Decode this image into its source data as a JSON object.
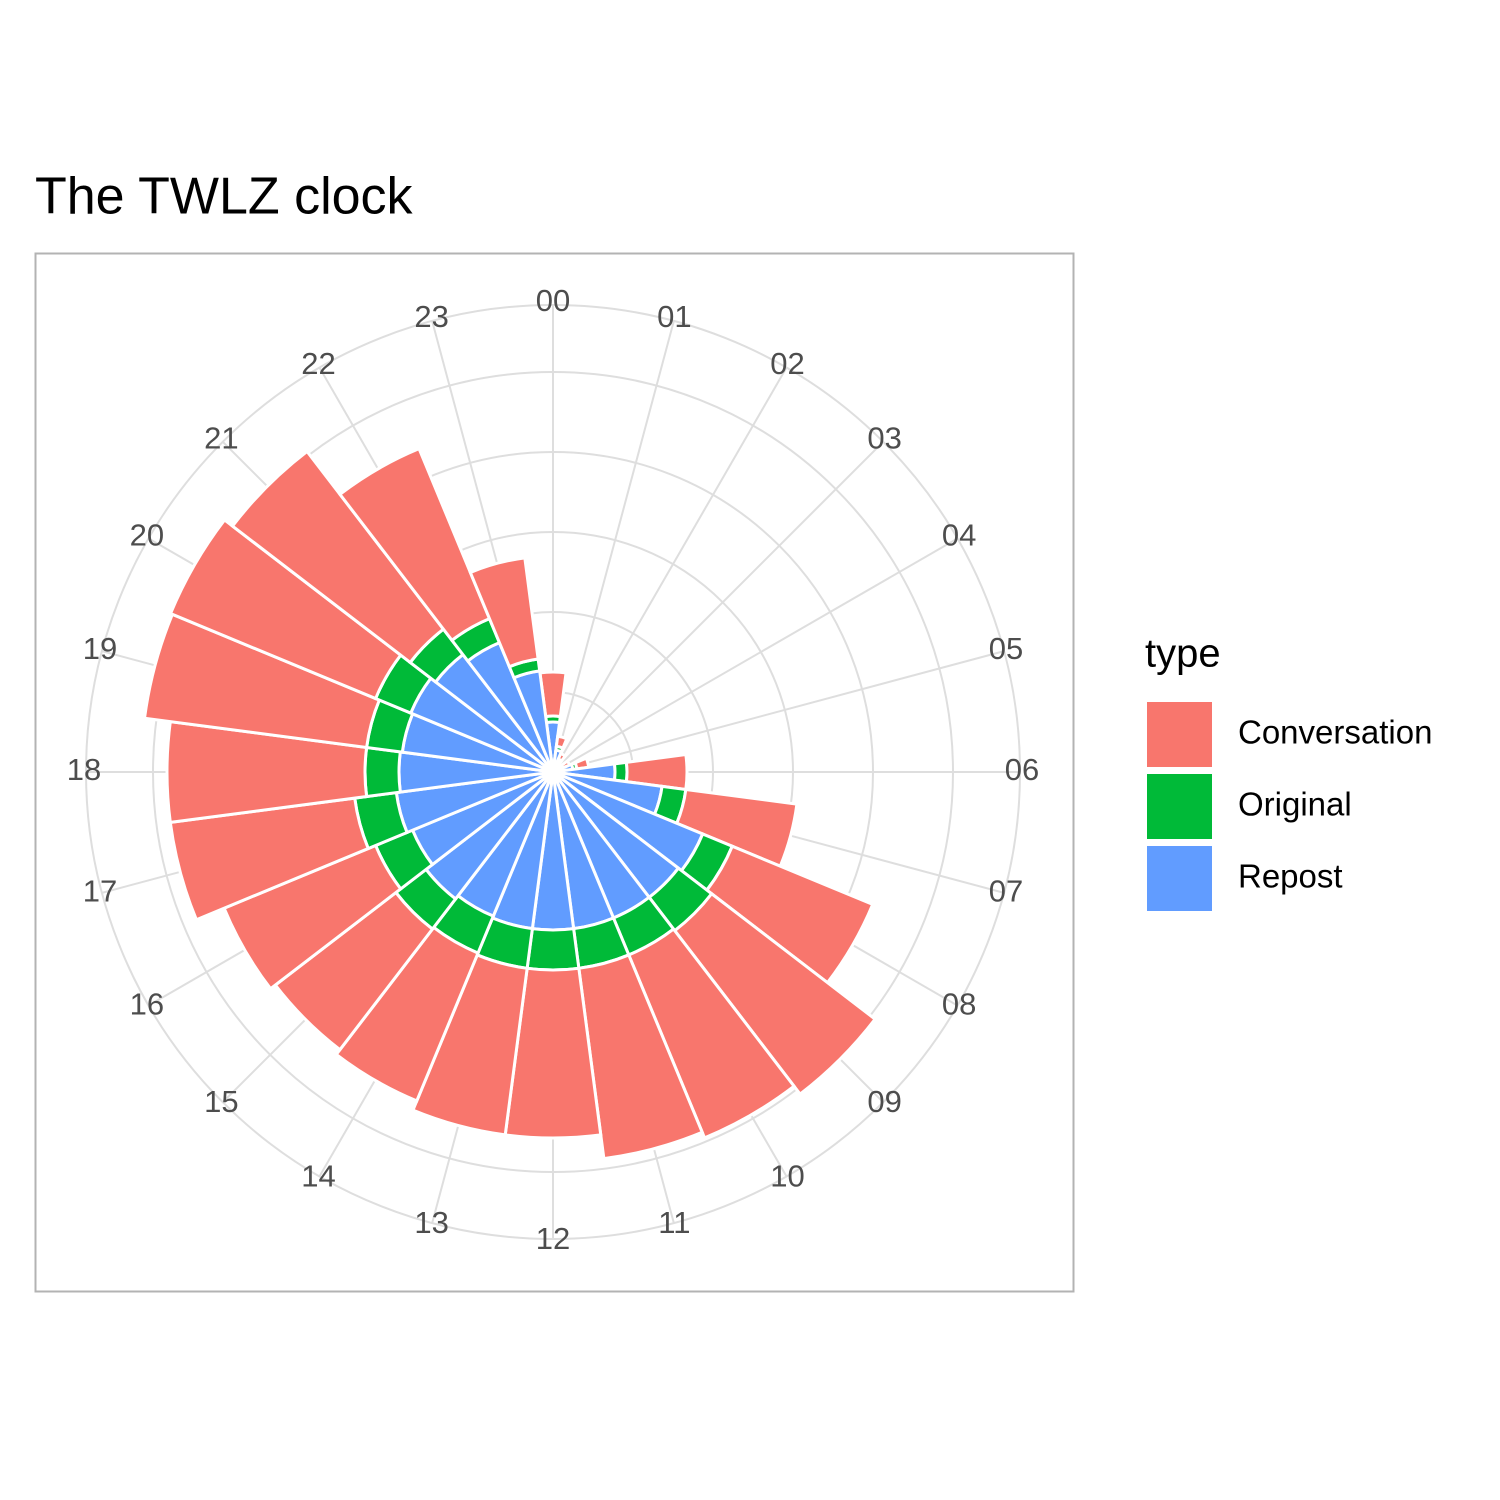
{
  "chart_data": {
    "type": "polar_stacked_bar",
    "title": "The TWLZ clock",
    "legend_title": "type",
    "legend_position": "right",
    "grid": true,
    "categories": [
      "00",
      "01",
      "02",
      "03",
      "04",
      "05",
      "06",
      "07",
      "08",
      "09",
      "10",
      "11",
      "12",
      "13",
      "14",
      "15",
      "16",
      "17",
      "18",
      "19",
      "20",
      "21",
      "22",
      "23"
    ],
    "ylim": [
      0,
      116.75
    ],
    "yticks": [
      0,
      20,
      40,
      60,
      80,
      100
    ],
    "series": [
      {
        "name": "Conversation",
        "color": "#F8766D",
        "values": [
          11,
          2.5,
          1.5,
          1,
          2,
          3,
          15,
          28,
          38,
          51.5,
          49.5,
          48,
          42,
          42,
          40,
          38,
          41,
          46.5,
          49.5,
          56,
          55.5,
          56,
          46,
          25.5
        ]
      },
      {
        "name": "Original",
        "color": "#00BA38",
        "values": [
          1.5,
          1,
          0.5,
          0.5,
          0.5,
          1,
          3,
          6,
          8,
          10.5,
          10,
          10,
          10,
          10,
          10,
          9.5,
          10,
          10.5,
          8.5,
          9,
          9.5,
          8,
          6.5,
          3
        ]
      },
      {
        "name": "Repost",
        "color": "#619CFF",
        "values": [
          12.5,
          5.5,
          3,
          1,
          2,
          5,
          15.5,
          27.5,
          40.5,
          39.5,
          39.5,
          39.5,
          39.5,
          39.5,
          39,
          40,
          38,
          39.5,
          38.5,
          38,
          38.5,
          37,
          35,
          25.5
        ]
      }
    ]
  }
}
